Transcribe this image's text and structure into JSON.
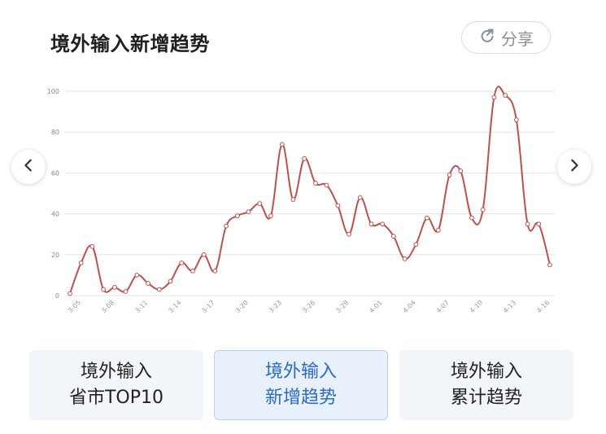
{
  "header": {
    "title": "境外输入新增趋势",
    "share_label": "分享"
  },
  "nav": {
    "prev_icon": "chevron-left-icon",
    "next_icon": "chevron-right-icon"
  },
  "tabs": [
    {
      "line1": "境外输入",
      "line2": "省市TOP10",
      "active": false
    },
    {
      "line1": "境外输入",
      "line2": "新增趋势",
      "active": true
    },
    {
      "line1": "境外输入",
      "line2": "累计趋势",
      "active": false
    }
  ],
  "colors": {
    "line": "#c0504d",
    "grid": "#e3e3e3",
    "active_tab_text": "#2a6bc7"
  },
  "chart_data": {
    "type": "line",
    "title": "",
    "xlabel": "",
    "ylabel": "",
    "ylim": [
      0,
      100
    ],
    "yticks": [
      0,
      20,
      40,
      60,
      80,
      100
    ],
    "grid": true,
    "x_tick_labels": [
      "3-05",
      "3-08",
      "3-11",
      "3-14",
      "3-17",
      "3-20",
      "3-23",
      "3-26",
      "3-29",
      "4-01",
      "4-04",
      "4-07",
      "4-10",
      "4-13",
      "4-16"
    ],
    "x": [
      "3-04",
      "3-05",
      "3-06",
      "3-07",
      "3-08",
      "3-09",
      "3-10",
      "3-11",
      "3-12",
      "3-13",
      "3-14",
      "3-15",
      "3-16",
      "3-17",
      "3-18",
      "3-19",
      "3-20",
      "3-21",
      "3-22",
      "3-23",
      "3-24",
      "3-25",
      "3-26",
      "3-27",
      "3-28",
      "3-29",
      "3-30",
      "3-31",
      "4-01",
      "4-02",
      "4-03",
      "4-04",
      "4-05",
      "4-06",
      "4-07",
      "4-08",
      "4-09",
      "4-10",
      "4-11",
      "4-12",
      "4-13",
      "4-14",
      "4-15",
      "4-16"
    ],
    "values": [
      1,
      16,
      24,
      3,
      4,
      2,
      10,
      6,
      3,
      7,
      16,
      12,
      20,
      12,
      34,
      39,
      41,
      45,
      39,
      74,
      47,
      67,
      55,
      54,
      44,
      30,
      48,
      35,
      35,
      29,
      18,
      25,
      38,
      32,
      59,
      61,
      38,
      42,
      97,
      98,
      86,
      35,
      35,
      15
    ]
  }
}
